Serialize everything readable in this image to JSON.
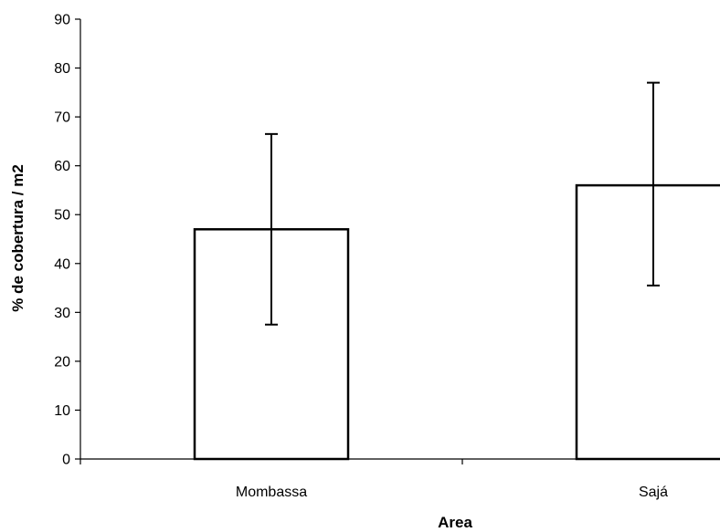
{
  "chart_data": {
    "type": "bar",
    "title": "",
    "xlabel": "Area",
    "ylabel": "% de cobertura  / m2",
    "categories": [
      "Mombassa",
      "Sajá"
    ],
    "values": [
      47,
      56
    ],
    "error_low": [
      27.5,
      35.5
    ],
    "error_high": [
      66.5,
      77
    ],
    "ylim": [
      0,
      90
    ],
    "yticks": [
      0,
      10,
      20,
      30,
      40,
      50,
      60,
      70,
      80,
      90
    ],
    "ytick_labels": [
      "0",
      "10",
      "20",
      "30",
      "40",
      "50",
      "60",
      "70",
      "80",
      "90"
    ],
    "grid": false,
    "legend": "none",
    "colors": {
      "bar_fill": "#ffffff",
      "bar_stroke": "#000000",
      "axis": "#000000"
    }
  }
}
